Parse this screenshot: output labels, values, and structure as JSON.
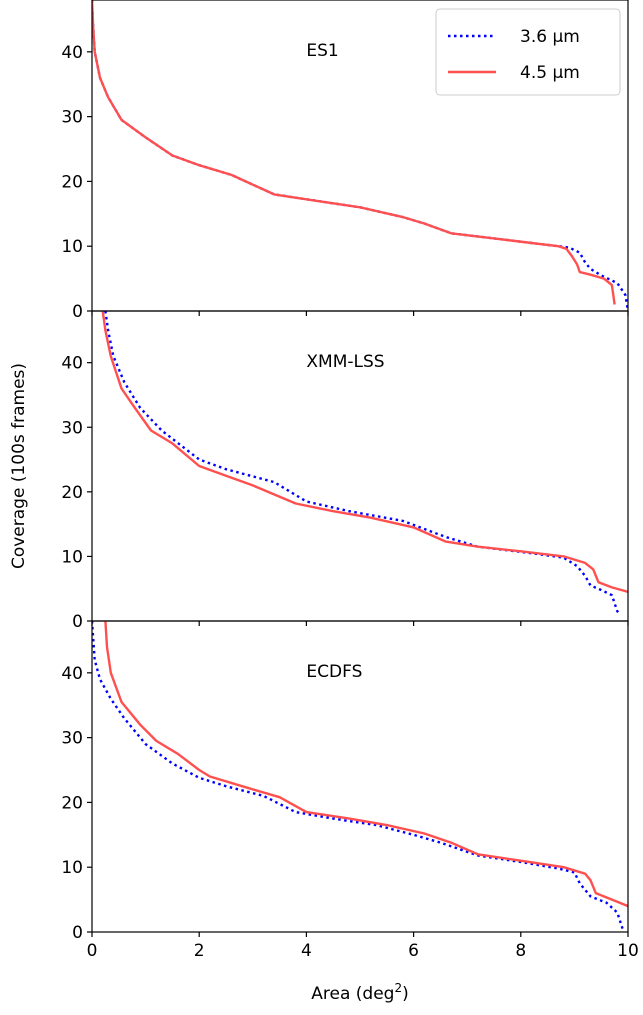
{
  "chart_data": {
    "type": "line",
    "xlabel": "Area (deg²)",
    "ylabel": "Coverage (100s frames)",
    "xlim": [
      0,
      10
    ],
    "ylim": [
      0,
      48
    ],
    "x_ticks": [
      "0",
      "2",
      "4",
      "6",
      "8",
      "10"
    ],
    "y_ticks": [
      "0",
      "10",
      "20",
      "30",
      "40"
    ],
    "grid": false,
    "legend": {
      "placement": "top-right",
      "entries": [
        {
          "label": "3.6 μm",
          "color": "#0000ff",
          "style": "dotted"
        },
        {
          "label": "4.5 μm",
          "color": "#ff5050",
          "style": "solid"
        }
      ]
    },
    "panels": [
      {
        "title": "ES1",
        "series": [
          {
            "name": "3.6 μm",
            "color": "#0000ff",
            "style": "dotted",
            "points": [
              [
                0.0,
                48
              ],
              [
                0.02,
                44
              ],
              [
                0.05,
                40
              ],
              [
                0.15,
                36
              ],
              [
                0.3,
                33
              ],
              [
                0.55,
                29.5
              ],
              [
                1.0,
                26.8
              ],
              [
                1.5,
                24
              ],
              [
                2.0,
                22.5
              ],
              [
                2.6,
                21
              ],
              [
                3.4,
                18
              ],
              [
                4.2,
                17
              ],
              [
                5.0,
                16
              ],
              [
                5.8,
                14.5
              ],
              [
                6.2,
                13.5
              ],
              [
                6.7,
                12
              ],
              [
                7.5,
                11.2
              ],
              [
                8.2,
                10.5
              ],
              [
                8.7,
                10
              ],
              [
                8.9,
                9.8
              ],
              [
                9.1,
                9.0
              ],
              [
                9.2,
                7.5
              ],
              [
                9.3,
                6.5
              ],
              [
                9.5,
                5.5
              ],
              [
                9.8,
                4.3
              ],
              [
                9.95,
                2.5
              ],
              [
                10.0,
                0
              ]
            ]
          },
          {
            "name": "4.5 μm",
            "color": "#ff5050",
            "style": "solid",
            "points": [
              [
                0.0,
                48
              ],
              [
                0.02,
                44
              ],
              [
                0.05,
                40
              ],
              [
                0.15,
                36
              ],
              [
                0.3,
                33
              ],
              [
                0.55,
                29.5
              ],
              [
                1.0,
                26.8
              ],
              [
                1.5,
                24
              ],
              [
                2.0,
                22.5
              ],
              [
                2.6,
                21
              ],
              [
                3.4,
                18
              ],
              [
                4.2,
                17
              ],
              [
                5.0,
                16
              ],
              [
                5.8,
                14.5
              ],
              [
                6.2,
                13.5
              ],
              [
                6.7,
                12
              ],
              [
                7.5,
                11.2
              ],
              [
                8.2,
                10.5
              ],
              [
                8.7,
                10
              ],
              [
                8.85,
                9.6
              ],
              [
                8.95,
                8.5
              ],
              [
                9.05,
                7.2
              ],
              [
                9.1,
                6
              ],
              [
                9.3,
                5.6
              ],
              [
                9.55,
                5.0
              ],
              [
                9.7,
                4.0
              ],
              [
                9.75,
                1.0
              ]
            ]
          }
        ]
      },
      {
        "title": "XMM-LSS",
        "series": [
          {
            "name": "3.6 μm",
            "color": "#0000ff",
            "style": "dotted",
            "points": [
              [
                0.25,
                48
              ],
              [
                0.3,
                45
              ],
              [
                0.4,
                41
              ],
              [
                0.6,
                37
              ],
              [
                0.9,
                33
              ],
              [
                1.3,
                29.5
              ],
              [
                2.0,
                25
              ],
              [
                2.5,
                23.5
              ],
              [
                3.4,
                21.5
              ],
              [
                4.0,
                18.5
              ],
              [
                4.8,
                17
              ],
              [
                5.8,
                15.5
              ],
              [
                6.6,
                13
              ],
              [
                7.2,
                11.5
              ],
              [
                8.2,
                10.5
              ],
              [
                8.8,
                9.8
              ],
              [
                9.05,
                8.5
              ],
              [
                9.2,
                7.0
              ],
              [
                9.3,
                5.5
              ],
              [
                9.5,
                4.8
              ],
              [
                9.7,
                4.0
              ],
              [
                9.8,
                1.5
              ],
              [
                9.85,
                1.0
              ]
            ]
          },
          {
            "name": "4.5 μm",
            "color": "#ff5050",
            "style": "solid",
            "points": [
              [
                0.2,
                48
              ],
              [
                0.25,
                45
              ],
              [
                0.35,
                41
              ],
              [
                0.55,
                36
              ],
              [
                0.8,
                33
              ],
              [
                1.1,
                29.5
              ],
              [
                1.5,
                27.5
              ],
              [
                2.0,
                24
              ],
              [
                2.5,
                22.5
              ],
              [
                3.0,
                21
              ],
              [
                3.8,
                18.2
              ],
              [
                4.5,
                17
              ],
              [
                5.2,
                16
              ],
              [
                6.0,
                14.5
              ],
              [
                6.6,
                12.3
              ],
              [
                7.2,
                11.5
              ],
              [
                8.0,
                10.8
              ],
              [
                8.8,
                10.0
              ],
              [
                9.2,
                9.0
              ],
              [
                9.35,
                8.0
              ],
              [
                9.45,
                6.0
              ],
              [
                9.7,
                5.2
              ],
              [
                10.0,
                4.5
              ]
            ]
          }
        ]
      },
      {
        "title": "ECDFS",
        "series": [
          {
            "name": "3.6 μm",
            "color": "#0000ff",
            "style": "dotted",
            "points": [
              [
                0.0,
                48
              ],
              [
                0.05,
                42
              ],
              [
                0.15,
                39
              ],
              [
                0.35,
                36
              ],
              [
                0.6,
                33
              ],
              [
                1.0,
                29
              ],
              [
                1.5,
                26
              ],
              [
                2.0,
                23.8
              ],
              [
                2.5,
                22.5
              ],
              [
                3.2,
                21
              ],
              [
                3.8,
                18.5
              ],
              [
                4.5,
                17.5
              ],
              [
                5.3,
                16.5
              ],
              [
                6.0,
                15
              ],
              [
                6.5,
                13.8
              ],
              [
                7.2,
                11.8
              ],
              [
                8.0,
                10.8
              ],
              [
                8.7,
                9.8
              ],
              [
                9.0,
                9.2
              ],
              [
                9.1,
                7.5
              ],
              [
                9.3,
                5.5
              ],
              [
                9.6,
                4.5
              ],
              [
                9.8,
                3.0
              ],
              [
                9.9,
                0.5
              ]
            ]
          },
          {
            "name": "4.5 μm",
            "color": "#ff5050",
            "style": "solid",
            "points": [
              [
                0.25,
                48
              ],
              [
                0.28,
                44
              ],
              [
                0.35,
                40
              ],
              [
                0.55,
                35.5
              ],
              [
                0.9,
                32
              ],
              [
                1.2,
                29.5
              ],
              [
                1.6,
                27.5
              ],
              [
                2.0,
                25
              ],
              [
                2.2,
                24
              ],
              [
                2.8,
                22.5
              ],
              [
                3.5,
                20.8
              ],
              [
                4.0,
                18.5
              ],
              [
                4.8,
                17.5
              ],
              [
                5.5,
                16.5
              ],
              [
                6.2,
                15.2
              ],
              [
                6.7,
                13.8
              ],
              [
                7.2,
                12
              ],
              [
                8.0,
                11
              ],
              [
                8.8,
                10.0
              ],
              [
                9.2,
                9.0
              ],
              [
                9.3,
                8.0
              ],
              [
                9.4,
                6.0
              ],
              [
                9.7,
                5.0
              ],
              [
                10.0,
                4.0
              ]
            ]
          }
        ]
      }
    ]
  }
}
